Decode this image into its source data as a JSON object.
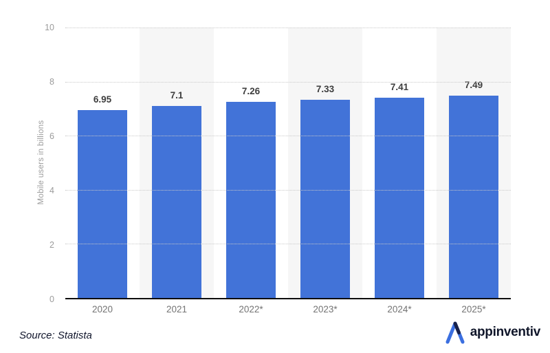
{
  "chart_data": {
    "type": "bar",
    "categories": [
      "2020",
      "2021",
      "2022*",
      "2023*",
      "2024*",
      "2025*"
    ],
    "values": [
      6.95,
      7.1,
      7.26,
      7.33,
      7.41,
      7.49
    ],
    "value_labels": [
      "6.95",
      "7.1",
      "7.26",
      "7.33",
      "7.41",
      "7.49"
    ],
    "title": "",
    "xlabel": "",
    "ylabel": "Mobile users in billions",
    "ylim": [
      0,
      10
    ],
    "y_ticks": [
      0,
      2,
      4,
      6,
      8,
      10
    ],
    "grid": "horizontal-dotted",
    "legend": "none",
    "bar_color": "#4273d8",
    "band_alt_color": "#f6f6f6",
    "gridline_color": "#c9c9c9",
    "axis_line_color": "#0d0d0d"
  },
  "footer": {
    "source": "Source: Statista",
    "logo_text": "appinventiv",
    "logo_colors": {
      "mark_blue": "#3b6fe0",
      "mark_navy": "#18214a",
      "text": "#10162a"
    }
  }
}
